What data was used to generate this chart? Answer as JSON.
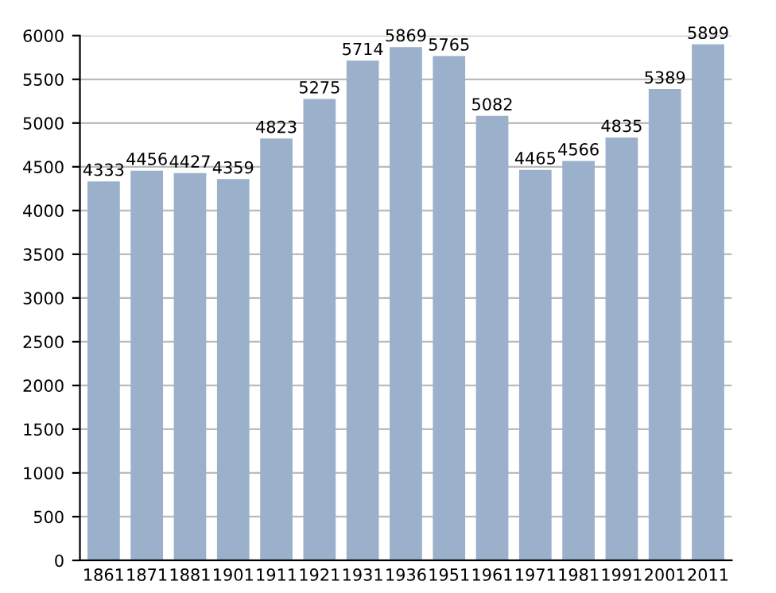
{
  "chart_data": {
    "type": "bar",
    "categories": [
      "1861",
      "1871",
      "1881",
      "1901",
      "1911",
      "1921",
      "1931",
      "1936",
      "1951",
      "1961",
      "1971",
      "1981",
      "1991",
      "2001",
      "2011"
    ],
    "values": [
      4333,
      4456,
      4427,
      4359,
      4823,
      5275,
      5714,
      5869,
      5765,
      5082,
      4465,
      4566,
      4835,
      5389,
      5899
    ],
    "color": "#9ab0cb",
    "data_labels": true,
    "grid": "y",
    "ylim": [
      0,
      6000
    ],
    "yticks": [
      0,
      500,
      1000,
      1500,
      2000,
      2500,
      3000,
      3500,
      4000,
      4500,
      5000,
      5500,
      6000
    ]
  }
}
